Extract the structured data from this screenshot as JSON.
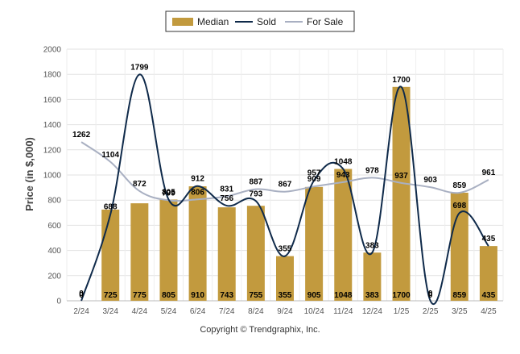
{
  "footer": "Copyright © Trendgraphix, Inc.",
  "chart_data": {
    "type": "bar+line",
    "categories": [
      "2/24",
      "3/24",
      "4/24",
      "5/24",
      "6/24",
      "7/24",
      "8/24",
      "9/24",
      "10/24",
      "11/24",
      "12/24",
      "1/25",
      "2/25",
      "3/25",
      "4/25"
    ],
    "series": [
      {
        "name": "Median",
        "type": "bar",
        "color": "#C29A3E",
        "values": [
          0,
          725,
          775,
          805,
          910,
          743,
          755,
          355,
          905,
          1048,
          383,
          1700,
          0,
          859,
          435
        ]
      },
      {
        "name": "Sold",
        "type": "line",
        "color": "#0F2A4A",
        "values": [
          0,
          688,
          1799,
          805,
          912,
          756,
          793,
          355,
          957,
          1048,
          383,
          1700,
          0,
          698,
          435
        ],
        "labels": [
          "0",
          "688",
          "1799",
          "805",
          "912",
          "756",
          "793",
          "355",
          "957",
          "1048",
          "383",
          "1700",
          "0",
          "698",
          "435"
        ]
      },
      {
        "name": "For Sale",
        "type": "line",
        "color": "#A9B0C2",
        "values": [
          1262,
          1104,
          872,
          799,
          806,
          831,
          887,
          867,
          909,
          943,
          978,
          937,
          903,
          859,
          961
        ],
        "labels": [
          "1262",
          "1104",
          "872",
          "799",
          "806",
          "831",
          "887",
          "867",
          "909",
          "943",
          "978",
          "937",
          "903",
          "859",
          "961"
        ]
      }
    ],
    "bar_labels": [
      "0",
      "725",
      "775",
      "805",
      "910",
      "743",
      "755",
      "355",
      "905",
      "1048",
      "383",
      "1700",
      "0",
      "859",
      "435"
    ],
    "ylabel": "Price (in $,000)",
    "ylim": [
      0,
      2000
    ],
    "yticks": [
      0,
      200,
      400,
      600,
      800,
      1000,
      1200,
      1400,
      1600,
      1800,
      2000
    ],
    "grid": true,
    "legend_position": "top-center"
  }
}
